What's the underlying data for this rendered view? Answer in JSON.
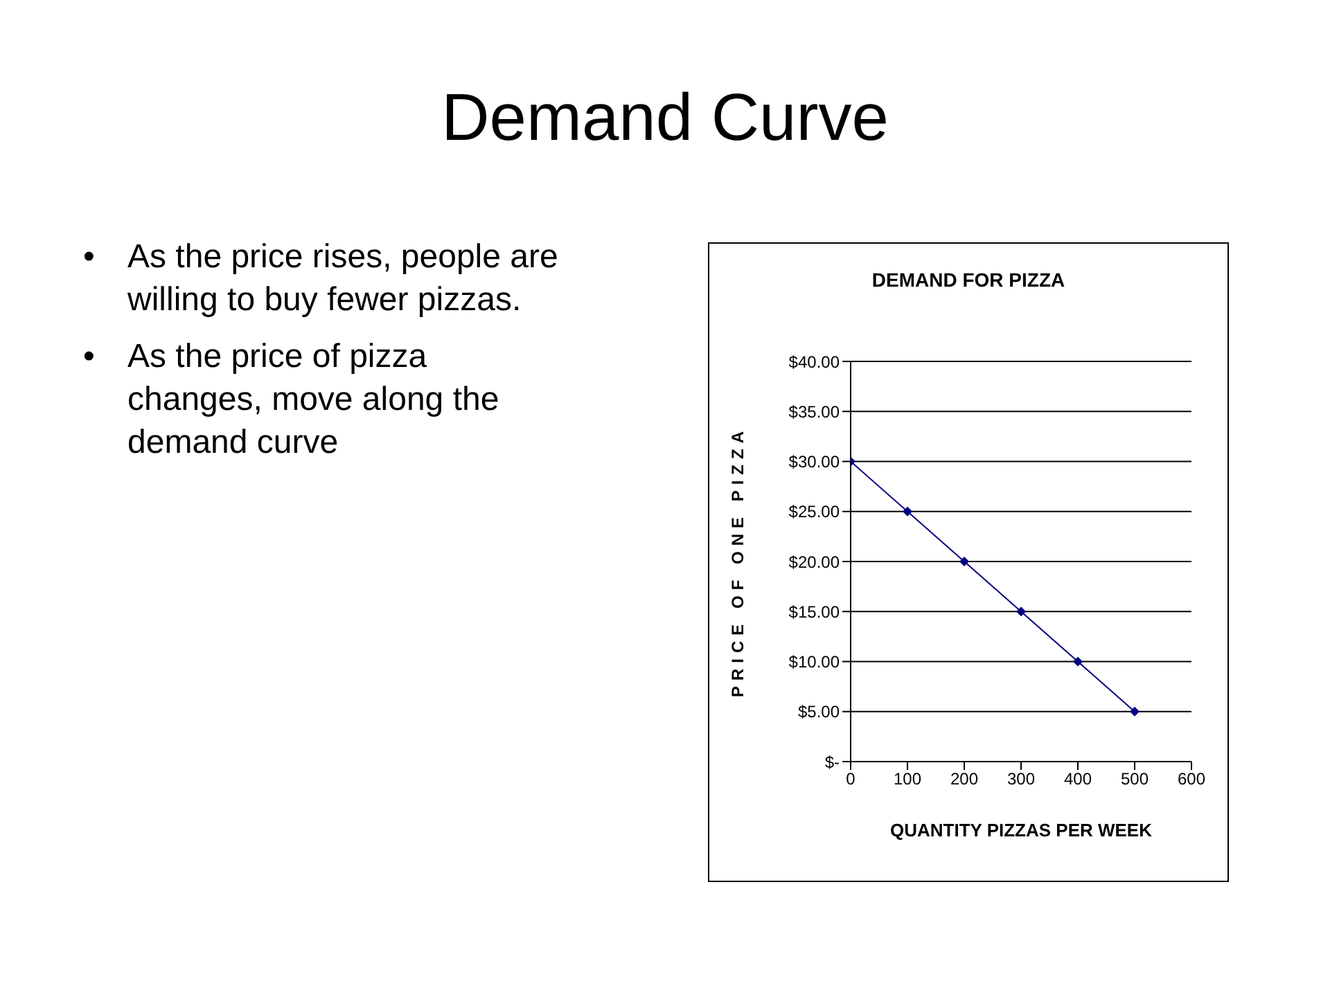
{
  "chart_data": {
    "type": "line",
    "title": "Demand Curve",
    "subtitle": "DEMAND FOR PIZZA",
    "xlabel": "QUANTITY PIZZAS PER WEEK",
    "ylabel": "PRICE OF ONE PIZZA",
    "annotations": [
      "•\tAs the price rises, people are willing to buy fewer pizzas.",
      "•\tAs the price of pizza changes, move along the demand curve"
    ],
    "x": [
      0,
      100,
      200,
      300,
      400,
      500
    ],
    "series": [
      {
        "color": "#000080",
        "values": [
          30,
          25,
          20,
          15,
          10,
          5
        ]
      }
    ],
    "xlim": [
      0,
      600
    ],
    "xticks": [
      0,
      100,
      200,
      300,
      400,
      500,
      600
    ],
    "ylim": [
      0,
      40
    ],
    "yticks": [
      {
        "value": 0,
        "label": "$-"
      },
      {
        "value": 5,
        "label": "$5.00"
      },
      {
        "value": 10,
        "label": "$10.00"
      },
      {
        "value": 15,
        "label": "$15.00"
      },
      {
        "value": 20,
        "label": "$20.00"
      },
      {
        "value": 25,
        "label": "$25.00"
      },
      {
        "value": 30,
        "label": "$30.00"
      },
      {
        "value": 35,
        "label": "$35.00"
      },
      {
        "value": 40,
        "label": "$40.00"
      }
    ],
    "grid": "y",
    "marker": "diamond",
    "line_style": "solid"
  }
}
